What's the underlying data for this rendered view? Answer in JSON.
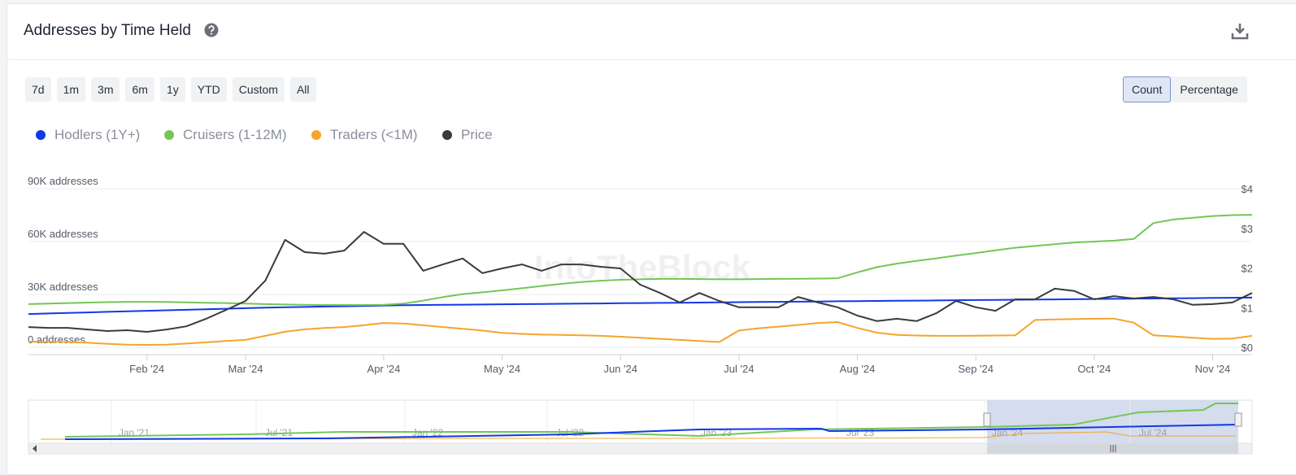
{
  "header": {
    "title": "Addresses by Time Held"
  },
  "range_buttons": [
    "7d",
    "1m",
    "3m",
    "6m",
    "1y",
    "YTD",
    "Custom",
    "All"
  ],
  "mode_buttons": [
    "Count",
    "Percentage"
  ],
  "active_mode": "Count",
  "chart_data": {
    "type": "line",
    "watermark": "IntoTheBlock",
    "categories": [
      null,
      null,
      null,
      null,
      null,
      null,
      "Feb '24",
      null,
      null,
      null,
      null,
      "Mar '24",
      null,
      null,
      null,
      null,
      null,
      null,
      "Apr '24",
      null,
      null,
      null,
      null,
      null,
      "May '24",
      null,
      null,
      null,
      null,
      null,
      "Jun '24",
      null,
      null,
      null,
      null,
      null,
      "Jul '24",
      null,
      null,
      null,
      null,
      null,
      "Aug '24",
      null,
      null,
      null,
      null,
      null,
      "Sep '24",
      null,
      null,
      null,
      null,
      null,
      "Oct '24",
      null,
      null,
      null,
      null,
      null,
      "Nov '24",
      null,
      null
    ],
    "series": [
      {
        "name": "Hodlers (1Y+)",
        "color": "#1238e6",
        "values": [
          18900,
          19200,
          19500,
          19800,
          20100,
          20400,
          20700,
          21000,
          21300,
          21600,
          21900,
          22200,
          22500,
          22700,
          22900,
          23100,
          23300,
          23500,
          23700,
          23900,
          24000,
          24100,
          24200,
          24300,
          24400,
          24500,
          24600,
          24700,
          24800,
          24900,
          25000,
          25100,
          25200,
          25300,
          25400,
          25500,
          25600,
          25700,
          25800,
          25900,
          26000,
          26100,
          26200,
          26300,
          26400,
          26500,
          26600,
          26700,
          26800,
          26900,
          27000,
          27100,
          27200,
          27300,
          27400,
          27500,
          27600,
          27700,
          27800,
          27900,
          28000,
          28100,
          28200
        ]
      },
      {
        "name": "Cruisers (1-12M)",
        "color": "#74c656",
        "values": [
          24500,
          24800,
          25100,
          25400,
          25600,
          25800,
          25800,
          25700,
          25500,
          25300,
          25100,
          24800,
          24500,
          24300,
          24100,
          24000,
          24000,
          24000,
          24100,
          24800,
          26500,
          28500,
          30200,
          31200,
          32300,
          33500,
          34800,
          36000,
          37000,
          37800,
          38300,
          38600,
          38800,
          38800,
          38700,
          38600,
          38600,
          38700,
          38800,
          38900,
          39000,
          39200,
          42500,
          45500,
          47500,
          49000,
          50500,
          52000,
          53500,
          55000,
          56500,
          57500,
          58500,
          59500,
          60000,
          60500,
          61500,
          70500,
          72500,
          73500,
          74500,
          75000,
          75200
        ]
      },
      {
        "name": "Traders (<1M)",
        "color": "#f5a42c",
        "values": [
          3200,
          3100,
          3000,
          2600,
          2000,
          1500,
          1400,
          1500,
          2100,
          2800,
          3600,
          4200,
          6500,
          8800,
          10200,
          11000,
          11500,
          12500,
          13800,
          13500,
          12500,
          11500,
          10500,
          9500,
          8200,
          7600,
          7200,
          7000,
          6800,
          6500,
          6000,
          5400,
          4800,
          4200,
          3600,
          3000,
          9500,
          10800,
          11700,
          12700,
          13800,
          14300,
          11000,
          8300,
          7000,
          6700,
          6500,
          6500,
          6600,
          6700,
          6800,
          15500,
          15800,
          16000,
          16200,
          16300,
          14000,
          6800,
          6200,
          5400,
          4800,
          5000,
          6500
        ]
      },
      {
        "name": "Price",
        "color": "#3b3b3d",
        "axis": "y2",
        "values": [
          0.51,
          0.49,
          0.49,
          0.45,
          0.41,
          0.43,
          0.39,
          0.45,
          0.53,
          0.72,
          0.94,
          1.17,
          1.68,
          2.71,
          2.4,
          2.36,
          2.44,
          2.91,
          2.61,
          2.61,
          1.93,
          2.09,
          2.24,
          1.87,
          1.99,
          2.09,
          1.93,
          2.09,
          2.09,
          2.03,
          1.99,
          1.58,
          1.37,
          1.13,
          1.37,
          1.17,
          1.01,
          1.01,
          1.01,
          1.27,
          1.13,
          1.01,
          0.8,
          0.66,
          0.72,
          0.66,
          0.86,
          1.17,
          1.01,
          0.92,
          1.21,
          1.21,
          1.48,
          1.42,
          1.21,
          1.29,
          1.23,
          1.27,
          1.21,
          1.07,
          1.09,
          1.13,
          1.37
        ]
      }
    ],
    "ylim": [
      0,
      90000
    ],
    "yticks": [
      {
        "value": 0,
        "label": "0 addresses"
      },
      {
        "value": 30000,
        "label": "30K addresses"
      },
      {
        "value": 60000,
        "label": "60K addresses"
      },
      {
        "value": 90000,
        "label": "90K addresses"
      }
    ],
    "y2lim": [
      0,
      4
    ],
    "y2ticks": [
      {
        "value": 0,
        "label": "$0"
      },
      {
        "value": 1,
        "label": "$1"
      },
      {
        "value": 2,
        "label": "$2"
      },
      {
        "value": 3,
        "label": "$3"
      },
      {
        "value": 4,
        "label": "$4"
      }
    ],
    "grid": true
  },
  "navigator": {
    "labels": [
      "Jan '21",
      "Jul '21",
      "Jan '22",
      "Jul '22",
      "Jan '23",
      "Jul '23",
      "Jan '24",
      "Jul '24"
    ]
  }
}
